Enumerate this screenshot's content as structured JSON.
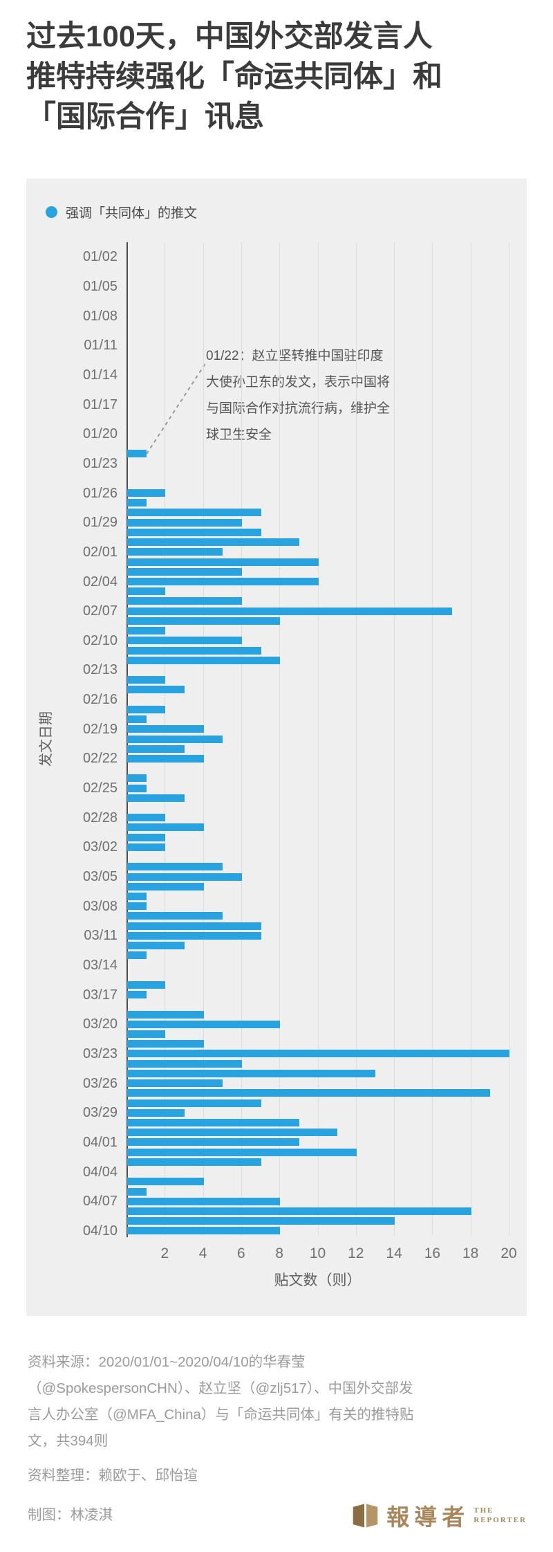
{
  "title": "过去100天，中国外交部发言人\n推特持续强化「命运共同体」和\n「国际合作」讯息",
  "legend": {
    "label": "强调「共同体」的推文"
  },
  "annotation": {
    "text": "01/22：赵立坚转推中国驻印度\n大使孙卫东的发文，表示中国将\n与国际合作对抗流行病，维护全\n球卫生安全"
  },
  "colors": {
    "bar": "#29a2e0",
    "panel_bg": "#efefef",
    "grid": "#dcdcdc",
    "axis": "#4d4d4d",
    "leader": "#999999",
    "title_text": "#3b3b3b",
    "footer_text": "#9b9b9b",
    "logo_brown": "#a8875d"
  },
  "chart_data": {
    "type": "bar",
    "orientation": "horizontal",
    "xlabel": "贴文数（则）",
    "ylabel": "发文日期",
    "xlim": [
      0,
      21
    ],
    "xticks": [
      2,
      4,
      6,
      8,
      10,
      12,
      14,
      16,
      18,
      20
    ],
    "grid": "vertical",
    "legend_position": "top-left",
    "total_posts": 394,
    "yticks": [
      "01/02",
      "01/05",
      "01/08",
      "01/11",
      "01/14",
      "01/17",
      "01/20",
      "01/23",
      "01/26",
      "01/29",
      "02/01",
      "02/04",
      "02/07",
      "02/10",
      "02/13",
      "02/16",
      "02/19",
      "02/22",
      "02/25",
      "02/28",
      "03/02",
      "03/05",
      "03/08",
      "03/11",
      "03/14",
      "03/17",
      "03/20",
      "03/23",
      "03/26",
      "03/29",
      "04/01",
      "04/04",
      "04/07",
      "04/10"
    ],
    "rows": [
      [
        "01/01",
        0
      ],
      [
        "01/02",
        0
      ],
      [
        "01/03",
        0
      ],
      [
        "01/04",
        0
      ],
      [
        "01/05",
        0
      ],
      [
        "01/06",
        0
      ],
      [
        "01/07",
        0
      ],
      [
        "01/08",
        0
      ],
      [
        "01/09",
        0
      ],
      [
        "01/10",
        0
      ],
      [
        "01/11",
        0
      ],
      [
        "01/12",
        0
      ],
      [
        "01/13",
        0
      ],
      [
        "01/14",
        0
      ],
      [
        "01/15",
        0
      ],
      [
        "01/16",
        0
      ],
      [
        "01/17",
        0
      ],
      [
        "01/18",
        0
      ],
      [
        "01/19",
        0
      ],
      [
        "01/20",
        0
      ],
      [
        "01/21",
        0
      ],
      [
        "01/22",
        1
      ],
      [
        "01/23",
        0
      ],
      [
        "01/24",
        0
      ],
      [
        "01/25",
        0
      ],
      [
        "01/26",
        2
      ],
      [
        "01/27",
        1
      ],
      [
        "01/28",
        7
      ],
      [
        "01/29",
        6
      ],
      [
        "01/30",
        7
      ],
      [
        "01/31",
        9
      ],
      [
        "02/01",
        5
      ],
      [
        "02/02",
        10
      ],
      [
        "02/03",
        6
      ],
      [
        "02/04",
        10
      ],
      [
        "02/05",
        2
      ],
      [
        "02/06",
        6
      ],
      [
        "02/07",
        17
      ],
      [
        "02/08",
        8
      ],
      [
        "02/09",
        2
      ],
      [
        "02/10",
        6
      ],
      [
        "02/11",
        7
      ],
      [
        "02/12",
        8
      ],
      [
        "02/13",
        0
      ],
      [
        "02/14",
        2
      ],
      [
        "02/15",
        3
      ],
      [
        "02/16",
        0
      ],
      [
        "02/17",
        2
      ],
      [
        "02/18",
        1
      ],
      [
        "02/19",
        4
      ],
      [
        "02/20",
        5
      ],
      [
        "02/21",
        3
      ],
      [
        "02/22",
        4
      ],
      [
        "02/23",
        0
      ],
      [
        "02/24",
        1
      ],
      [
        "02/25",
        1
      ],
      [
        "02/26",
        3
      ],
      [
        "02/27",
        0
      ],
      [
        "02/28",
        2
      ],
      [
        "02/29",
        4
      ],
      [
        "03/01",
        2
      ],
      [
        "03/02",
        2
      ],
      [
        "03/03",
        0
      ],
      [
        "03/04",
        5
      ],
      [
        "03/05",
        6
      ],
      [
        "03/06",
        4
      ],
      [
        "03/07",
        1
      ],
      [
        "03/08",
        1
      ],
      [
        "03/09",
        5
      ],
      [
        "03/10",
        7
      ],
      [
        "03/11",
        7
      ],
      [
        "03/12",
        3
      ],
      [
        "03/13",
        1
      ],
      [
        "03/14",
        0
      ],
      [
        "03/15",
        0
      ],
      [
        "03/16",
        2
      ],
      [
        "03/17",
        1
      ],
      [
        "03/18",
        0
      ],
      [
        "03/19",
        4
      ],
      [
        "03/20",
        8
      ],
      [
        "03/21",
        2
      ],
      [
        "03/22",
        4
      ],
      [
        "03/23",
        20
      ],
      [
        "03/24",
        6
      ],
      [
        "03/25",
        13
      ],
      [
        "03/26",
        5
      ],
      [
        "03/27",
        19
      ],
      [
        "03/28",
        7
      ],
      [
        "03/29",
        3
      ],
      [
        "03/30",
        9
      ],
      [
        "03/31",
        11
      ],
      [
        "04/01",
        9
      ],
      [
        "04/02",
        12
      ],
      [
        "04/03",
        7
      ],
      [
        "04/04",
        0
      ],
      [
        "04/05",
        4
      ],
      [
        "04/06",
        1
      ],
      [
        "04/07",
        8
      ],
      [
        "04/08",
        18
      ],
      [
        "04/09",
        14
      ],
      [
        "04/10",
        8
      ]
    ]
  },
  "footer": {
    "source": "资料来源：2020/01/01~2020/04/10的华春莹\n（@SpokespersonCHN）、赵立坚（@zlj517）、中国外交部发\n言人办公室（@MFA_China）与「命运共同体」有关的推特贴\n文，共394则",
    "credit1": "资料整理：赖欧于、邱怡瑄",
    "credit2": "制图：林凌淇",
    "logo_zh": "報導者",
    "logo_en_line1": "THE",
    "logo_en_line2": "REPORTER"
  }
}
